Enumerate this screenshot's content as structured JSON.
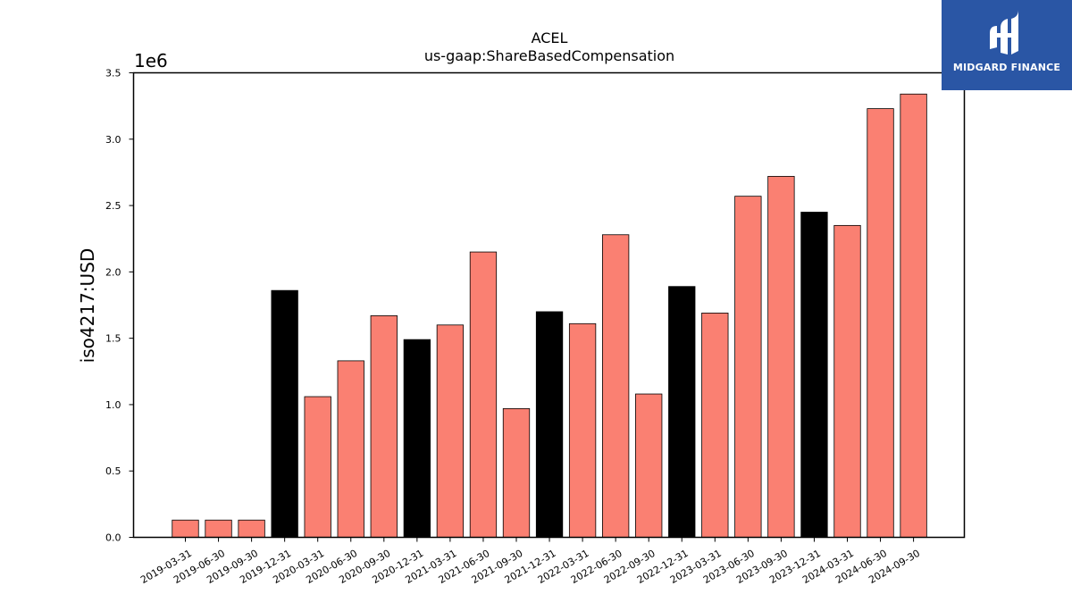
{
  "chart_data": {
    "type": "bar",
    "title": "ACEL",
    "subtitle": "us-gaap:ShareBasedCompensation",
    "ylabel": "iso4217:USD",
    "xlabel": "",
    "offset_label": "1e6",
    "ylim": [
      0,
      3500000
    ],
    "yticks": [
      0,
      500000,
      1000000,
      1500000,
      2000000,
      2500000,
      3000000,
      3500000
    ],
    "ytick_labels": [
      "0.0",
      "0.5",
      "1.0",
      "1.5",
      "2.0",
      "2.5",
      "3.0",
      "3.5"
    ],
    "grid": false,
    "legend": "none",
    "categories": [
      "2019-03-31",
      "2019-06-30",
      "2019-09-30",
      "2019-12-31",
      "2020-03-31",
      "2020-06-30",
      "2020-09-30",
      "2020-12-31",
      "2021-03-31",
      "2021-06-30",
      "2021-09-30",
      "2021-12-31",
      "2022-03-31",
      "2022-06-30",
      "2022-09-30",
      "2022-12-31",
      "2023-03-31",
      "2023-06-30",
      "2023-09-30",
      "2023-12-31",
      "2024-03-31",
      "2024-06-30",
      "2024-09-30"
    ],
    "values": [
      130000,
      130000,
      130000,
      1860000,
      1060000,
      1330000,
      1670000,
      1490000,
      1600000,
      2150000,
      970000,
      1700000,
      1610000,
      2280000,
      1080000,
      1890000,
      1690000,
      2570000,
      2720000,
      2450000,
      2350000,
      3230000,
      3340000
    ],
    "bar_colors": [
      "#fa8072",
      "#fa8072",
      "#fa8072",
      "#000000",
      "#fa8072",
      "#fa8072",
      "#fa8072",
      "#000000",
      "#fa8072",
      "#fa8072",
      "#fa8072",
      "#000000",
      "#fa8072",
      "#fa8072",
      "#fa8072",
      "#000000",
      "#fa8072",
      "#fa8072",
      "#fa8072",
      "#000000",
      "#fa8072",
      "#fa8072",
      "#fa8072"
    ]
  },
  "brand": {
    "name": "MIDGARD FINANCE",
    "background": "#2a56a5",
    "foreground": "#ffffff",
    "icon": "midgard-logo-icon"
  }
}
